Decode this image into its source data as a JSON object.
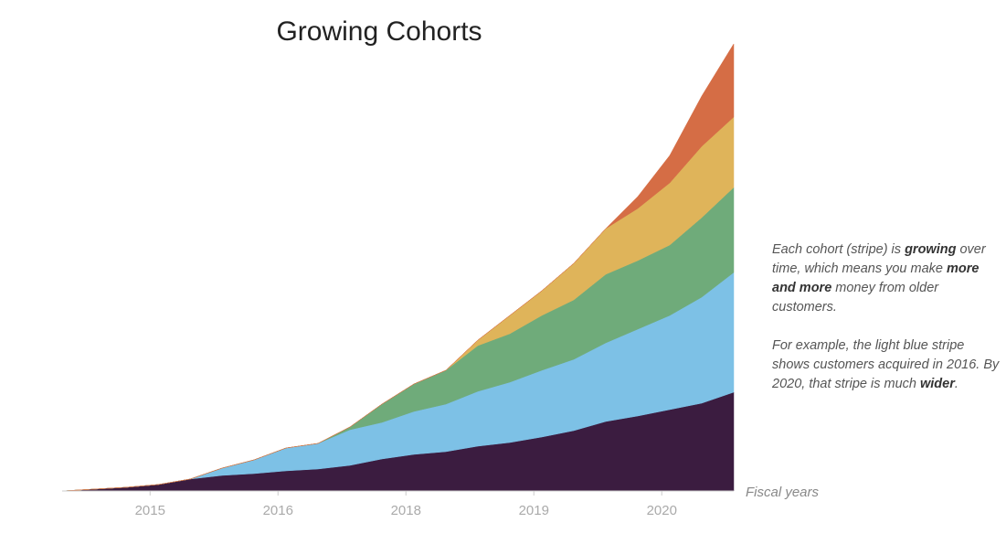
{
  "chart_data": {
    "type": "stacked_area",
    "title": "Growing Cohorts",
    "x_label": "Fiscal years",
    "x": [
      0,
      1,
      2,
      3,
      4,
      5,
      6,
      7,
      8,
      9,
      10,
      11,
      12,
      13,
      14,
      15,
      16,
      17,
      18,
      19,
      20,
      21
    ],
    "xlim": [
      0,
      21
    ],
    "xticks": [
      {
        "value": 2.75,
        "label": "2015"
      },
      {
        "value": 6.75,
        "label": "2016"
      },
      {
        "value": 10.75,
        "label": "2018"
      },
      {
        "value": 14.75,
        "label": "2019"
      },
      {
        "value": 18.75,
        "label": "2020"
      }
    ],
    "ylim": [
      0,
      500
    ],
    "series": [
      {
        "color": "#3b1c40",
        "values": [
          0,
          2,
          4,
          7,
          13,
          17,
          19,
          22,
          24,
          28,
          35,
          40,
          43,
          49,
          53,
          59,
          66,
          76,
          82,
          89,
          96,
          108
        ]
      },
      {
        "color": "#7dc1e6",
        "values": [
          0,
          0,
          0,
          0,
          0,
          8,
          15,
          25,
          28,
          39,
          40,
          47,
          52,
          60,
          66,
          73,
          78,
          86,
          95,
          103,
          116,
          131
        ]
      },
      {
        "color": "#6fab7a",
        "values": [
          0,
          0,
          0,
          0,
          0,
          0,
          0,
          0,
          0,
          3,
          20,
          30,
          37,
          50,
          53,
          60,
          65,
          75,
          75,
          77,
          87,
          93
        ]
      },
      {
        "color": "#dfb45a",
        "values": [
          0,
          0,
          0,
          0,
          0,
          0,
          0,
          0,
          0,
          0,
          0,
          0,
          0,
          6,
          20,
          27,
          40,
          50,
          57,
          68,
          78,
          77
        ]
      },
      {
        "color": "#d56d45",
        "values": [
          0,
          0,
          0,
          0,
          0,
          0,
          0,
          0,
          0,
          0,
          0,
          0,
          0,
          0,
          0,
          0,
          0,
          0,
          13,
          30,
          55,
          80
        ]
      }
    ],
    "annotations": [
      [
        {
          "text": "Each cohort (stripe) is ",
          "bold": false
        },
        {
          "text": "growing",
          "bold": true
        },
        {
          "text": " over time, which means you make ",
          "bold": false
        },
        {
          "text": "more and more",
          "bold": true
        },
        {
          "text": " money from older customers.",
          "bold": false
        }
      ],
      [
        {
          "text": "For example, the light blue stripe shows customers acquired in 2016. By 2020, that stripe is much ",
          "bold": false
        },
        {
          "text": "wider",
          "bold": true
        },
        {
          "text": ".",
          "bold": false
        }
      ]
    ]
  }
}
